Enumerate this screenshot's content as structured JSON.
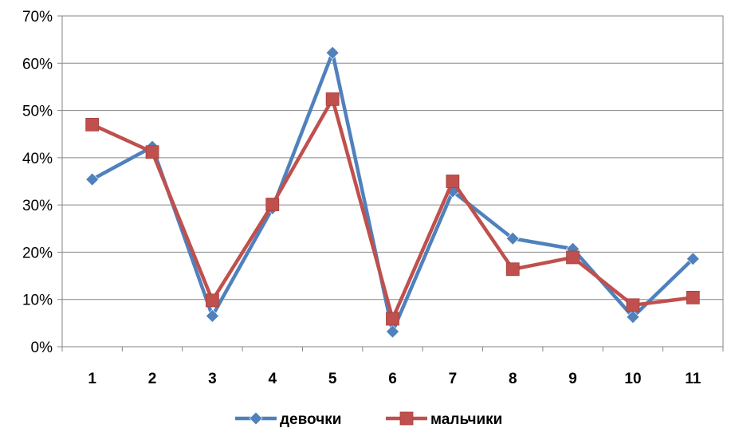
{
  "chart_data": {
    "type": "line",
    "title": "",
    "xlabel": "",
    "ylabel": "",
    "categories": [
      "1",
      "2",
      "3",
      "4",
      "5",
      "6",
      "7",
      "8",
      "9",
      "10",
      "11"
    ],
    "y_axis": {
      "min": 0,
      "max": 0.7,
      "step": 0.1,
      "format": "percent",
      "tick_labels": [
        "0%",
        "10%",
        "20%",
        "30%",
        "40%",
        "50%",
        "60%",
        "70%"
      ]
    },
    "grid": true,
    "legend_position": "bottom",
    "series": [
      {
        "name": "девочки",
        "color": "#4f81bd",
        "marker": "diamond",
        "values": [
          0.354,
          0.423,
          0.065,
          0.293,
          0.622,
          0.032,
          0.329,
          0.229,
          0.207,
          0.063,
          0.186
        ]
      },
      {
        "name": "мальчики",
        "color": "#c0504d",
        "marker": "square",
        "values": [
          0.47,
          0.412,
          0.098,
          0.301,
          0.524,
          0.059,
          0.35,
          0.164,
          0.189,
          0.088,
          0.104
        ]
      }
    ]
  }
}
